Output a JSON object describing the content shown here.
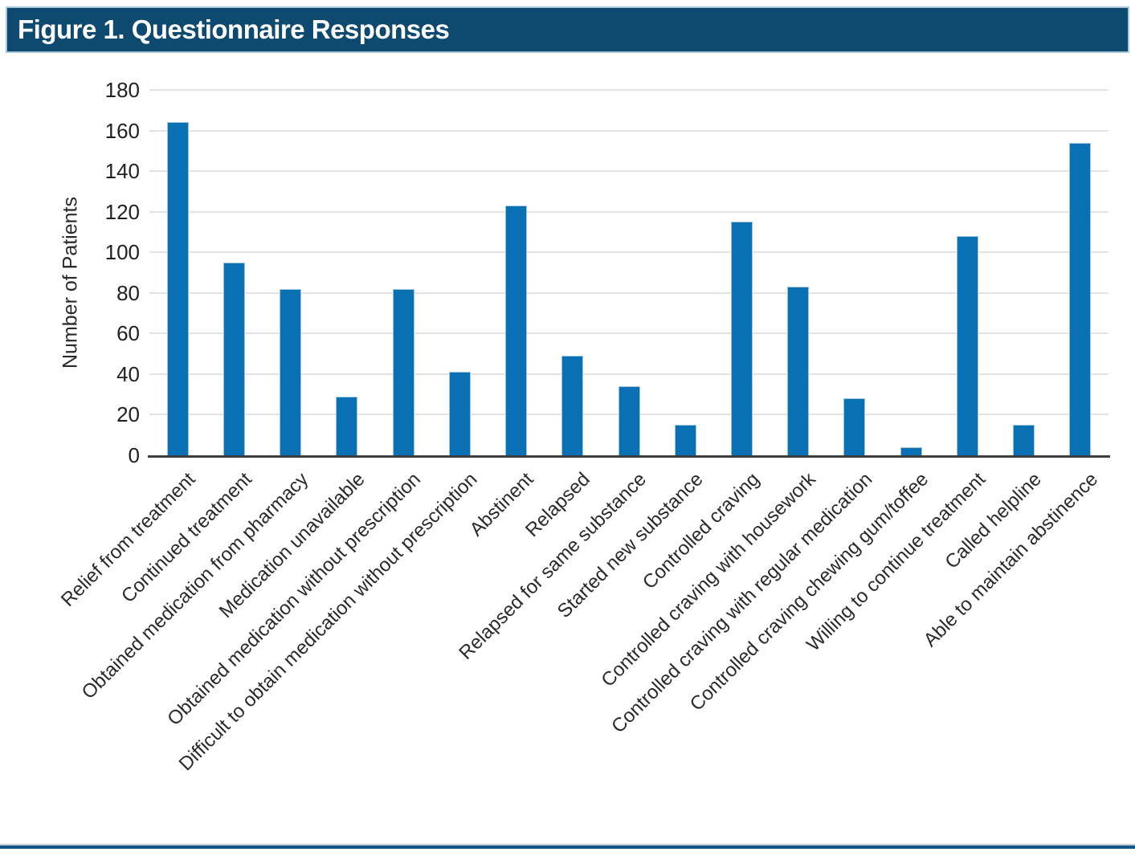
{
  "header": {
    "title": "Figure 1. Questionnaire Responses"
  },
  "colors": {
    "header_bg": "#0e4a70",
    "header_border": "#a9c6d8",
    "header_text": "#ffffff",
    "bar": "#0a70b4",
    "bar_edge": "#9ec4de",
    "gridline": "#e3e3e3",
    "axis_line": "#3e3e3e",
    "tick_text": "#231f20",
    "footer_rule_gray": "#c2c8cc",
    "footer_rule_blue": "#10568a"
  },
  "chart_data": {
    "type": "bar",
    "title": "Figure 1. Questionnaire Responses",
    "categories": [
      "Relief from treatment",
      "Continued treatment",
      "Obtained medication from pharmacy",
      "Medication unavailable",
      "Obtained medication without prescription",
      "Difficult to obtain medication without prescription",
      "Abstinent",
      "Relapsed",
      "Relapsed for same substance",
      "Started new substance",
      "Controlled craving",
      "Controlled craving with housework",
      "Controlled craving with regular medication",
      "Controlled craving chewing gum/toffee",
      "Willing to continue treatment",
      "Called helpline",
      "Able to maintain abstinence"
    ],
    "values": [
      164,
      95,
      82,
      29,
      82,
      41,
      123,
      49,
      34,
      15,
      115,
      83,
      28,
      4,
      108,
      15,
      154
    ],
    "xlabel": "",
    "ylabel": "Number of Patients",
    "ylim": [
      0,
      180
    ],
    "ytick_step": 20,
    "yticks": [
      0,
      20,
      40,
      60,
      80,
      100,
      120,
      140,
      160,
      180
    ],
    "grid": "horizontal",
    "legend": "none",
    "bar_color": "#0a70b4",
    "xlabel_rotation_deg": 45
  }
}
